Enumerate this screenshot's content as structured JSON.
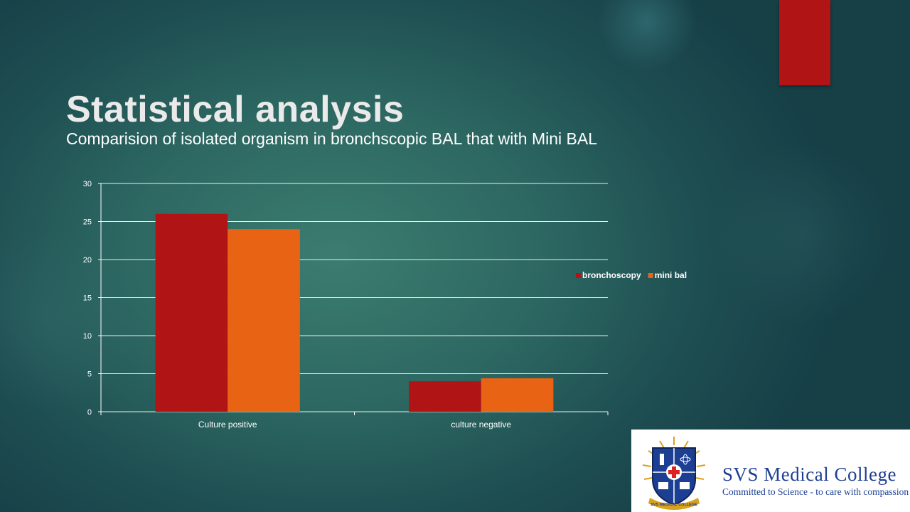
{
  "slide": {
    "title": "Statistical analysis",
    "subtitle": "Comparision of isolated organism in bronchscopic BAL that with Mini BAL"
  },
  "colors": {
    "accent": "#b01414",
    "bronchoscopy": "#b01414",
    "mini_bal": "#e86313",
    "background": "#2d6862"
  },
  "chart_data": {
    "type": "bar",
    "title": "",
    "xlabel": "",
    "ylabel": "",
    "categories": [
      "Culture positive",
      "culture negative"
    ],
    "series": [
      {
        "name": "bronchoscopy",
        "values": [
          26,
          4
        ]
      },
      {
        "name": "mini bal",
        "values": [
          24,
          4.4
        ]
      }
    ],
    "ylim": [
      0,
      30
    ],
    "yticks": [
      0,
      5,
      10,
      15,
      20,
      25,
      30
    ],
    "grid": true,
    "legend_position": "right"
  },
  "logo": {
    "name": "SVS MEDICAL COLLEGE",
    "name_display": "SVS Medical College",
    "tagline": "Committed to Science - to care with compassion",
    "emblem_text": "SVS MEDICAL COLLEGE",
    "icon": "crest-icon"
  }
}
